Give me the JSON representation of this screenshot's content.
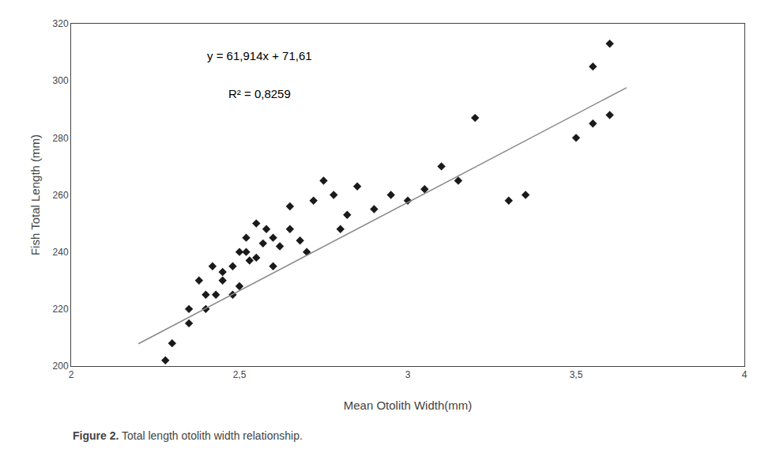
{
  "chart_data": {
    "type": "scatter",
    "x_label": "Mean Otolith Width(mm)",
    "y_label": "Fish Total Length (mm)",
    "annotations": [
      "y = 61,914x + 71,61",
      "R² = 0,8259"
    ],
    "caption": {
      "bold": "Figure 2.",
      "text": "Total length otolith width relationship."
    },
    "series": [
      {
        "type": "scatter",
        "marker": "diamond",
        "color": "#1a1a1a",
        "x": [
          2.28,
          2.3,
          2.35,
          2.35,
          2.38,
          2.4,
          2.4,
          2.42,
          2.43,
          2.45,
          2.45,
          2.48,
          2.48,
          2.5,
          2.5,
          2.52,
          2.52,
          2.53,
          2.55,
          2.55,
          2.57,
          2.58,
          2.6,
          2.6,
          2.62,
          2.65,
          2.65,
          2.68,
          2.7,
          2.72,
          2.75,
          2.78,
          2.8,
          2.82,
          2.85,
          2.9,
          2.95,
          3.0,
          3.05,
          3.1,
          3.15,
          3.2,
          3.3,
          3.35,
          3.5,
          3.55,
          3.55,
          3.6,
          3.6
        ],
        "values": [
          202,
          208,
          220,
          215,
          230,
          220,
          225,
          235,
          225,
          230,
          233,
          235,
          225,
          240,
          228,
          240,
          245,
          237,
          238,
          250,
          243,
          248,
          245,
          235,
          242,
          248,
          256,
          244,
          240,
          258,
          265,
          260,
          248,
          253,
          263,
          255,
          260,
          258,
          262,
          270,
          265,
          287,
          258,
          260,
          280,
          285,
          305,
          288,
          313
        ]
      },
      {
        "type": "line",
        "line_style": "solid",
        "color": "#888888",
        "x": [
          2.2,
          3.65
        ],
        "values": [
          207.8208,
          297.5961
        ]
      }
    ],
    "xlim": [
      2.0,
      4.0
    ],
    "ylim": [
      200,
      320
    ],
    "xticks": [
      2,
      {
        "value": 2.5,
        "label": "2,5"
      },
      3,
      {
        "value": 3.5,
        "label": "3,5"
      },
      4
    ],
    "yticks": [
      200,
      220,
      240,
      260,
      280,
      300,
      320
    ],
    "grid": false
  }
}
